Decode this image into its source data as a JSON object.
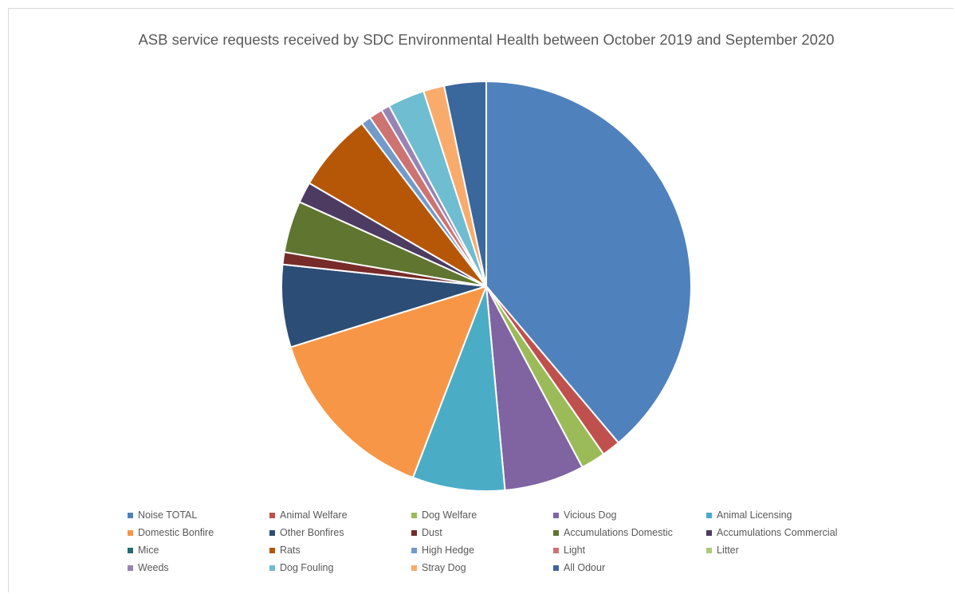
{
  "chart_data": {
    "type": "pie",
    "title": "ASB service requests received by SDC Environmental Health between October 2019 and September 2020",
    "legend_position": "bottom",
    "slices": [
      {
        "name": "Noise TOTAL",
        "value": 40.0,
        "color": "#4F81BD"
      },
      {
        "name": "Animal Welfare",
        "value": 1.5,
        "color": "#C0504D"
      },
      {
        "name": "Dog Welfare",
        "value": 2.0,
        "color": "#9BBB59"
      },
      {
        "name": "Vicious Dog",
        "value": 6.5,
        "color": "#8064A2"
      },
      {
        "name": "Animal Licensing",
        "value": 7.5,
        "color": "#4BACC6"
      },
      {
        "name": "Domestic Bonfire",
        "value": 14.8,
        "color": "#F79646"
      },
      {
        "name": "Other Bonfires",
        "value": 6.7,
        "color": "#2C4D75"
      },
      {
        "name": "Dust",
        "value": 1.0,
        "color": "#772C2A"
      },
      {
        "name": "Accumulations Domestic",
        "value": 4.2,
        "color": "#5F7530"
      },
      {
        "name": "Accumulations Commercial",
        "value": 1.7,
        "color": "#4D3B62"
      },
      {
        "name": "Mice",
        "value": 0.0,
        "color": "#276A7C"
      },
      {
        "name": "Rats",
        "value": 6.4,
        "color": "#B65708"
      },
      {
        "name": "High Hedge",
        "value": 0.8,
        "color": "#729ACA"
      },
      {
        "name": "Light",
        "value": 1.1,
        "color": "#CD7371"
      },
      {
        "name": "Litter",
        "value": 0.0,
        "color": "#AFC97A"
      },
      {
        "name": "Weeds",
        "value": 0.7,
        "color": "#9983B5"
      },
      {
        "name": "Dog Fouling",
        "value": 3.0,
        "color": "#6FBDD1"
      },
      {
        "name": "Stray Dog",
        "value": 1.7,
        "color": "#F9AB6B"
      },
      {
        "name": "All Odour",
        "value": 3.4,
        "color": "#3A679C"
      }
    ]
  }
}
